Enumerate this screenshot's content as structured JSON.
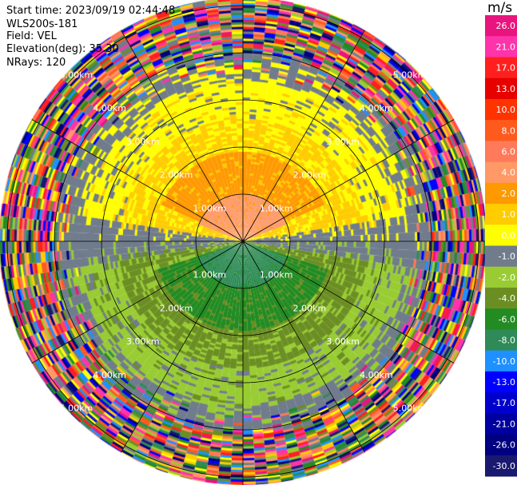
{
  "header": {
    "start_time": "Start time: 2023/09/19 02:44:48",
    "instrument": "WLS200s-181",
    "field": "Field: VEL",
    "elevation": "Elevation(deg): 35.30",
    "nrays": "NRays: 120"
  },
  "colorbar": {
    "unit": "m/s",
    "ticks": [
      "26.0",
      "21.0",
      "17.0",
      "13.0",
      "10.0",
      "8.0",
      "6.0",
      "4.0",
      "2.0",
      "1.0",
      "0.0",
      "-1.0",
      "-2.0",
      "-4.0",
      "-6.0",
      "-8.0",
      "-10.0",
      "-13.0",
      "-17.0",
      "-21.0",
      "-26.0",
      "-30.0"
    ],
    "colors": [
      "#e8157e",
      "#ff33aa",
      "#ff1f1f",
      "#e60000",
      "#ff3300",
      "#ff5a1e",
      "#ff7a5a",
      "#ff9966",
      "#ff9900",
      "#ffcc00",
      "#ffff00",
      "#707c8c",
      "#99cc33",
      "#6b8e23",
      "#228b22",
      "#2e8b57",
      "#1e90ff",
      "#0000ff",
      "#0000cd",
      "#0000a0",
      "#000080",
      "#191970"
    ]
  },
  "chart_data": {
    "type": "heatmap",
    "projection": "polar PPI (plan position indicator)",
    "field": "VEL",
    "units": "m/s",
    "elevation_deg": 35.3,
    "nrays": 120,
    "range_ring_labels": [
      "1.00km",
      "2.00km",
      "3.00km",
      "4.00km",
      "5.00km"
    ],
    "range_rings_km": [
      1,
      2,
      3,
      4,
      5
    ],
    "spokes_deg": [
      0,
      30,
      60,
      90,
      120,
      150,
      180,
      210,
      240,
      270,
      300,
      330
    ],
    "colorbar_range": [
      -30.0,
      26.0
    ],
    "observed_pattern": [
      {
        "region": "north half, inner 1 km",
        "velocity_range_ms": [
          6.0,
          8.0
        ]
      },
      {
        "region": "north half, 1-3.5 km",
        "velocity_range_ms": [
          2.0,
          6.0
        ]
      },
      {
        "region": "east-west band near center",
        "velocity_range_ms": [
          -1.0,
          1.0
        ]
      },
      {
        "region": "south half, inner 1.5 km",
        "velocity_range_ms": [
          -8.0,
          -6.0
        ]
      },
      {
        "region": "south half, 1.5-3.5 km",
        "velocity_range_ms": [
          -6.0,
          -2.0
        ]
      },
      {
        "region": "beyond ~3.5 km",
        "velocity_range_ms": [
          -30.0,
          26.0
        ],
        "note": "noise / mixed colors"
      }
    ]
  }
}
